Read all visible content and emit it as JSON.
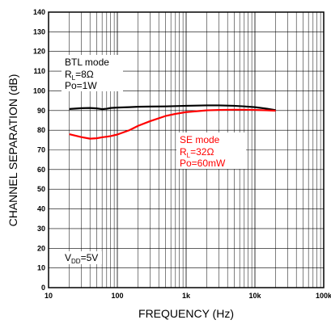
{
  "chart_data": {
    "type": "line",
    "xlabel": "FREQUENCY (Hz)",
    "ylabel": "CHANNEL SEPARATION (dB)",
    "x_scale": "log",
    "xlim": [
      10,
      100000
    ],
    "ylim": [
      0,
      140
    ],
    "grid": true,
    "x_ticks": [
      10,
      100,
      1000,
      10000,
      100000
    ],
    "x_tick_labels": [
      "10",
      "100",
      "1k",
      "10k",
      "100k"
    ],
    "y_ticks": [
      0,
      10,
      20,
      30,
      40,
      50,
      60,
      70,
      80,
      90,
      100,
      110,
      120,
      130,
      140
    ],
    "y_tick_labels": [
      "0",
      "10",
      "20",
      "30",
      "40",
      "50",
      "60",
      "70",
      "80",
      "90",
      "100",
      "110",
      "120",
      "130",
      "140"
    ],
    "series": [
      {
        "color": "#000000",
        "x": [
          20,
          30,
          40,
          50,
          60,
          70,
          80,
          100,
          150,
          200,
          300,
          500,
          1000,
          2000,
          3000,
          5000,
          7000,
          10000,
          15000,
          20000
        ],
        "y": [
          90.8,
          91.2,
          91.3,
          91.1,
          90.7,
          90.9,
          91.3,
          91.5,
          91.7,
          91.9,
          92.0,
          92.1,
          92.4,
          92.6,
          92.6,
          92.4,
          92.1,
          91.7,
          90.9,
          90.2
        ]
      },
      {
        "color": "#ff0000",
        "x": [
          20,
          30,
          40,
          50,
          60,
          70,
          80,
          100,
          150,
          200,
          300,
          500,
          700,
          1000,
          2000,
          3000,
          5000,
          7000,
          10000,
          15000,
          20000
        ],
        "y": [
          78.0,
          76.5,
          75.7,
          75.9,
          76.4,
          76.7,
          77.0,
          77.8,
          80.0,
          82.2,
          84.6,
          87.2,
          88.3,
          89.2,
          90.1,
          90.3,
          90.4,
          90.4,
          90.3,
          90.1,
          89.9
        ]
      }
    ],
    "annotations": [
      {
        "color": "#000000",
        "mode": "BTL mode",
        "load_main": "R",
        "load_sub": "L",
        "load_value": "=8Ω",
        "power": "Po=1W"
      },
      {
        "color": "#ff0000",
        "mode": "SE mode",
        "load_main": "R",
        "load_sub": "L",
        "load_value": "=32Ω",
        "power": "Po=60mW"
      },
      {
        "color": "#000000",
        "supply_main": "V",
        "supply_sub": "DD",
        "supply_value": "=5V"
      }
    ]
  }
}
